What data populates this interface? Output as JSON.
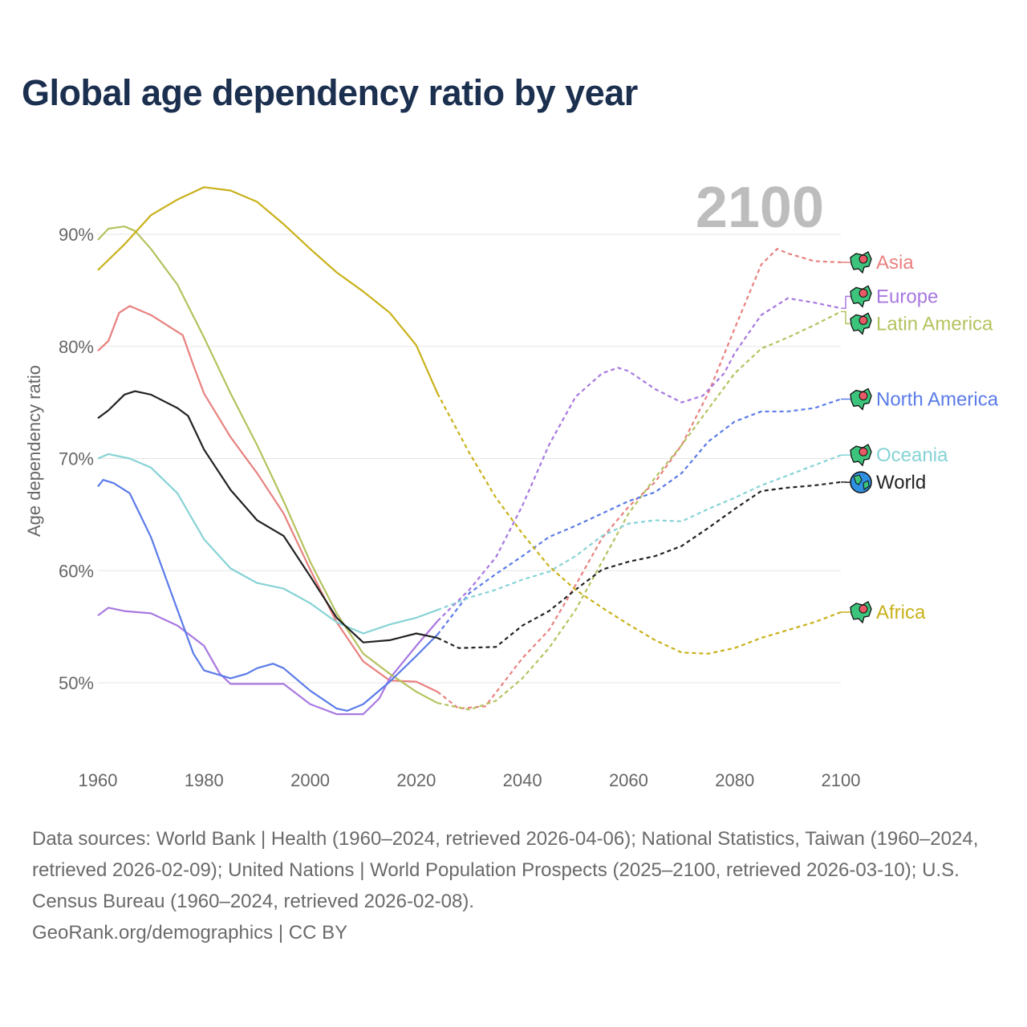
{
  "title": "Global age dependency ratio by year",
  "footer": {
    "sources": "Data sources: World Bank | Health (1960–2024, retrieved 2026-04-06); National Statistics, Taiwan (1960–2024, retrieved 2026-02-09); United Nations | World Population Prospects (2025–2100, retrieved 2026-03-10); U.S. Census Bureau (1960–2024, retrieved 2026-02-08).",
    "credit": "GeoRank.org/demographics | CC BY"
  },
  "chart_data": {
    "type": "line",
    "title": "Global age dependency ratio by year",
    "current_year_label": "2100",
    "xlabel": "",
    "ylabel": "Age dependency ratio",
    "xlim": [
      1960,
      2100
    ],
    "ylim": [
      44,
      96
    ],
    "xticks": [
      1960,
      1980,
      2000,
      2020,
      2040,
      2060,
      2080,
      2100
    ],
    "yticks": [
      50,
      60,
      70,
      80,
      90
    ],
    "ytick_labels": [
      "50%",
      "60%",
      "70%",
      "80%",
      "90%"
    ],
    "grid": true,
    "projection_start": 2024,
    "legend": "right end labels",
    "series": [
      {
        "name": "Asia",
        "color": "#e8817f",
        "icon": "asia-map-pin-icon",
        "x": [
          1960,
          1962,
          1964,
          1966,
          1970,
          1973,
          1976,
          1978,
          1980,
          1985,
          1990,
          1995,
          2000,
          2005,
          2010,
          2015,
          2020,
          2024,
          2028,
          2033,
          2040,
          2045,
          2050,
          2055,
          2060,
          2065,
          2070,
          2075,
          2080,
          2085,
          2088,
          2090,
          2095,
          2100
        ],
        "y": [
          79.6,
          80.5,
          83.0,
          83.6,
          82.8,
          81.9,
          81.0,
          78.3,
          75.8,
          71.9,
          68.7,
          65.1,
          60.1,
          55.4,
          51.9,
          50.2,
          50.1,
          49.2,
          47.7,
          47.9,
          52.2,
          54.7,
          58.7,
          62.9,
          65.7,
          67.9,
          71.2,
          75.8,
          81.6,
          87.3,
          88.7,
          88.3,
          87.6,
          87.5
        ]
      },
      {
        "name": "Europe",
        "color": "#a878e0",
        "icon": "europe-map-pin-icon",
        "x": [
          1960,
          1962,
          1965,
          1970,
          1975,
          1980,
          1983,
          1985,
          1990,
          1995,
          2000,
          2005,
          2010,
          2013,
          2015,
          2020,
          2024,
          2030,
          2035,
          2040,
          2045,
          2050,
          2055,
          2058,
          2060,
          2065,
          2070,
          2074,
          2078,
          2080,
          2085,
          2090,
          2095,
          2100
        ],
        "y": [
          56.0,
          56.7,
          56.4,
          56.2,
          55.1,
          53.3,
          50.8,
          49.9,
          49.9,
          49.9,
          48.1,
          47.2,
          47.2,
          48.6,
          50.4,
          53.3,
          55.5,
          58.3,
          61.2,
          65.8,
          71.2,
          75.5,
          77.6,
          78.1,
          77.8,
          76.2,
          75.0,
          75.6,
          77.6,
          79.4,
          82.8,
          84.3,
          83.9,
          83.4
        ]
      },
      {
        "name": "Latin America",
        "color": "#b5c25e",
        "icon": "latin-america-map-pin-icon",
        "x": [
          1960,
          1962,
          1965,
          1967,
          1970,
          1975,
          1980,
          1985,
          1990,
          1995,
          2000,
          2005,
          2010,
          2015,
          2020,
          2024,
          2030,
          2035,
          2040,
          2045,
          2050,
          2055,
          2060,
          2065,
          2070,
          2075,
          2080,
          2085,
          2090,
          2095,
          2100
        ],
        "y": [
          89.5,
          90.5,
          90.7,
          90.3,
          88.7,
          85.5,
          80.8,
          75.8,
          71.2,
          66.2,
          60.8,
          56.2,
          52.6,
          50.8,
          49.2,
          48.2,
          47.6,
          48.4,
          50.4,
          53.1,
          56.5,
          60.8,
          65.1,
          68.3,
          71.2,
          74.4,
          77.6,
          79.8,
          80.8,
          81.9,
          83.1
        ]
      },
      {
        "name": "North America",
        "color": "#5b7be8",
        "icon": "north-america-map-pin-icon",
        "x": [
          1960,
          1961,
          1963,
          1966,
          1970,
          1975,
          1978,
          1980,
          1985,
          1988,
          1990,
          1993,
          1995,
          2000,
          2005,
          2007,
          2010,
          2015,
          2020,
          2024,
          2030,
          2035,
          2040,
          2045,
          2050,
          2055,
          2060,
          2065,
          2070,
          2075,
          2080,
          2085,
          2090,
          2095,
          2100
        ],
        "y": [
          67.5,
          68.1,
          67.8,
          66.9,
          63.0,
          56.5,
          52.6,
          51.1,
          50.4,
          50.8,
          51.3,
          51.7,
          51.3,
          49.3,
          47.7,
          47.5,
          48.1,
          50.1,
          52.4,
          54.3,
          58.0,
          59.7,
          61.3,
          63.0,
          64.0,
          65.1,
          66.2,
          67.0,
          68.7,
          71.5,
          73.3,
          74.2,
          74.2,
          74.5,
          75.3
        ]
      },
      {
        "name": "Oceania",
        "color": "#87d3d6",
        "icon": "oceania-map-pin-icon",
        "x": [
          1960,
          1962,
          1966,
          1970,
          1975,
          1980,
          1985,
          1990,
          1995,
          2000,
          2005,
          2010,
          2015,
          2020,
          2024,
          2030,
          2035,
          2040,
          2045,
          2050,
          2055,
          2060,
          2065,
          2070,
          2075,
          2080,
          2085,
          2090,
          2095,
          2100
        ],
        "y": [
          70.0,
          70.4,
          70.0,
          69.2,
          66.9,
          62.8,
          60.2,
          58.9,
          58.4,
          57.1,
          55.4,
          54.4,
          55.2,
          55.8,
          56.5,
          57.6,
          58.3,
          59.2,
          59.9,
          61.3,
          63.1,
          64.2,
          64.5,
          64.4,
          65.5,
          66.5,
          67.6,
          68.5,
          69.4,
          70.3
        ]
      },
      {
        "name": "World",
        "color": "#222222",
        "icon": "globe-icon",
        "x": [
          1960,
          1962,
          1965,
          1967,
          1970,
          1975,
          1977,
          1980,
          1985,
          1990,
          1995,
          2000,
          2005,
          2010,
          2015,
          2020,
          2024,
          2028,
          2035,
          2040,
          2045,
          2050,
          2055,
          2060,
          2065,
          2070,
          2075,
          2080,
          2085,
          2090,
          2095,
          2100
        ],
        "y": [
          73.6,
          74.3,
          75.7,
          76.0,
          75.7,
          74.5,
          73.8,
          70.8,
          67.2,
          64.5,
          63.1,
          59.5,
          55.8,
          53.6,
          53.8,
          54.4,
          54.0,
          53.1,
          53.2,
          55.1,
          56.4,
          58.3,
          60.1,
          60.8,
          61.3,
          62.2,
          63.8,
          65.5,
          67.1,
          67.4,
          67.6,
          67.9
        ]
      },
      {
        "name": "Africa",
        "color": "#c9b11a",
        "icon": "africa-map-pin-icon",
        "x": [
          1960,
          1965,
          1970,
          1975,
          1980,
          1985,
          1990,
          1995,
          2000,
          2005,
          2010,
          2015,
          2020,
          2024,
          2030,
          2035,
          2040,
          2045,
          2050,
          2055,
          2060,
          2065,
          2070,
          2075,
          2080,
          2085,
          2090,
          2095,
          2100
        ],
        "y": [
          86.8,
          89.1,
          91.7,
          93.1,
          94.2,
          93.9,
          92.9,
          90.9,
          88.7,
          86.6,
          84.9,
          83.0,
          80.1,
          75.8,
          70.5,
          66.5,
          63.3,
          60.4,
          58.3,
          56.7,
          55.2,
          53.8,
          52.7,
          52.6,
          53.1,
          54.0,
          54.7,
          55.4,
          56.3
        ]
      }
    ]
  }
}
